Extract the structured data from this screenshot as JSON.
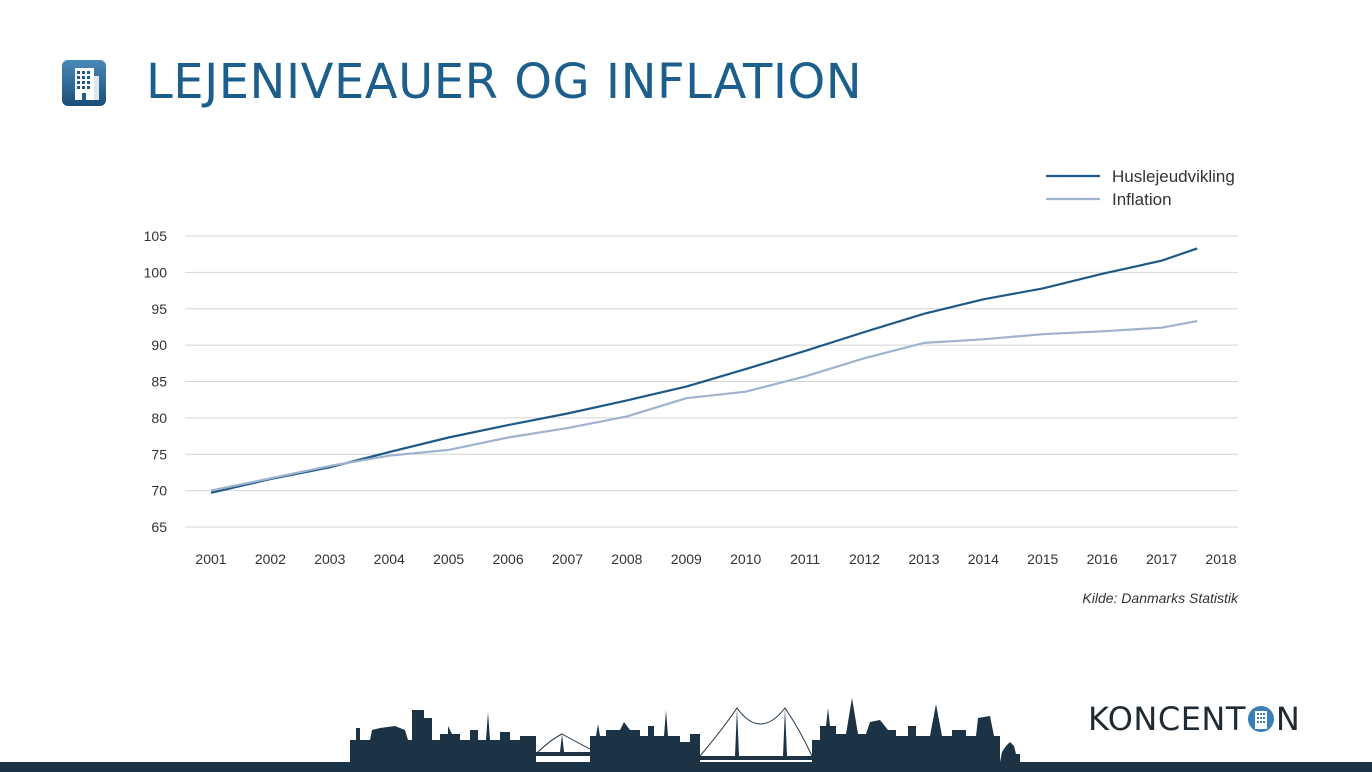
{
  "header": {
    "title": "LEJENIVEAUER OG INFLATION",
    "icon": "building-icon"
  },
  "chart_data": {
    "type": "line",
    "x": [
      2001,
      2002,
      2003,
      2004,
      2005,
      2006,
      2007,
      2008,
      2009,
      2010,
      2011,
      2012,
      2013,
      2014,
      2015,
      2016,
      2017,
      2017.6
    ],
    "x_ticks": [
      "2001",
      "2002",
      "2003",
      "2004",
      "2005",
      "2006",
      "2007",
      "2008",
      "2009",
      "2010",
      "2011",
      "2012",
      "2013",
      "2014",
      "2015",
      "2016",
      "2017",
      "2018"
    ],
    "xlim": [
      2001,
      2018
    ],
    "ylim": [
      65,
      105
    ],
    "y_ticks": [
      "65",
      "70",
      "75",
      "80",
      "85",
      "90",
      "95",
      "100",
      "105"
    ],
    "grid": true,
    "legend_position": "top-right",
    "series": [
      {
        "name": "Huslejeudvikling",
        "color": "#1d5a87",
        "values": [
          69.7,
          71.6,
          73.2,
          75.3,
          77.3,
          79.0,
          80.6,
          82.4,
          84.3,
          86.7,
          89.2,
          91.8,
          94.3,
          96.3,
          97.8,
          99.8,
          101.6,
          103.3
        ]
      },
      {
        "name": "Inflation",
        "color": "#9fb3cf",
        "values": [
          70.0,
          71.7,
          73.4,
          74.8,
          75.6,
          77.3,
          78.6,
          80.2,
          82.7,
          83.6,
          85.7,
          88.2,
          90.3,
          90.8,
          91.5,
          91.9,
          92.4,
          93.3
        ]
      }
    ],
    "source": "Kilde: Danmarks Statistik"
  },
  "footer": {
    "logo_text": "KONCENT",
    "logo_text_end": "N",
    "logo_icon": "building-in-circle-icon",
    "bar_color": "#1c3346",
    "skyline_color": "#1c3346"
  }
}
